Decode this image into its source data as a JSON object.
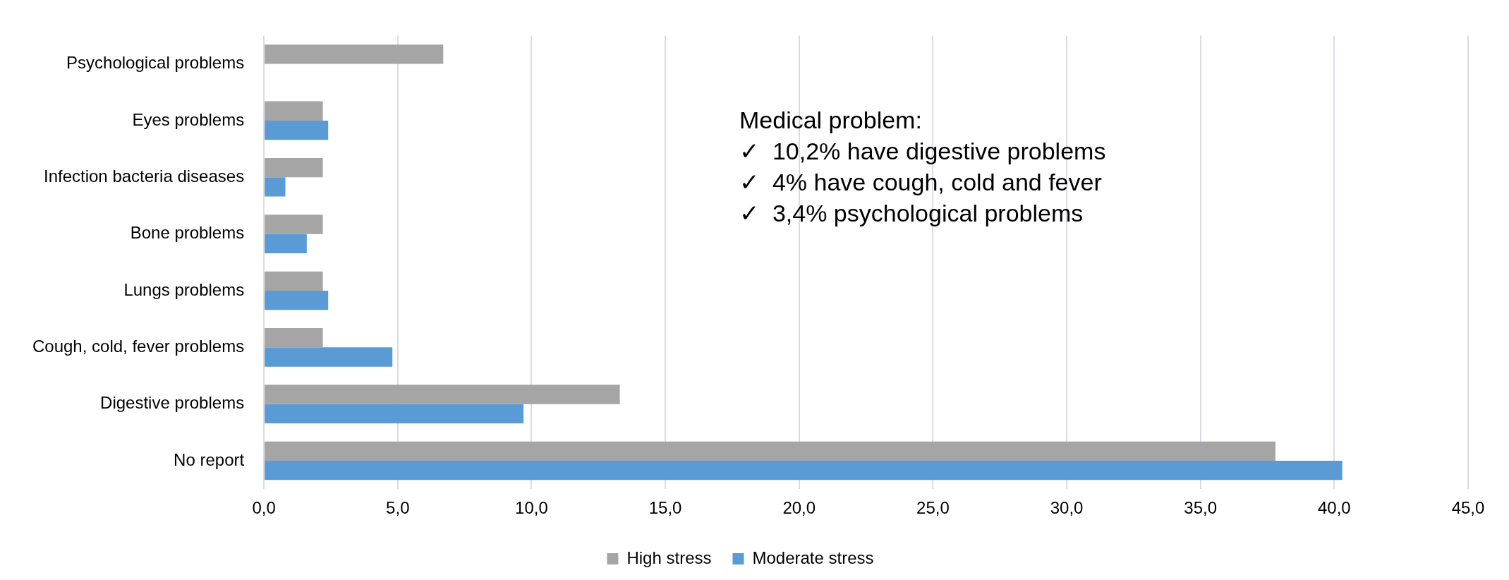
{
  "chart_data": {
    "type": "bar",
    "orientation": "horizontal",
    "categories": [
      "Psychological problems",
      "Eyes problems",
      "Infection bacteria diseases",
      "Bone problems",
      "Lungs problems",
      "Cough, cold, fever problems",
      "Digestive problems",
      "No report"
    ],
    "series": [
      {
        "name": "High stress",
        "color": "#a5a5a5",
        "values": [
          6.7,
          2.2,
          2.2,
          2.2,
          2.2,
          2.2,
          13.3,
          37.8
        ]
      },
      {
        "name": "Moderate stress",
        "color": "#5b9bd5",
        "values": [
          null,
          2.4,
          0.8,
          1.6,
          2.4,
          4.8,
          9.7,
          40.3
        ]
      }
    ],
    "xlim": [
      0,
      45
    ],
    "xticks": [
      {
        "value": 0,
        "label": "0,0"
      },
      {
        "value": 5,
        "label": "5,0"
      },
      {
        "value": 10,
        "label": "10,0"
      },
      {
        "value": 15,
        "label": "15,0"
      },
      {
        "value": 20,
        "label": "20,0"
      },
      {
        "value": 25,
        "label": "25,0"
      },
      {
        "value": 30,
        "label": "30,0"
      },
      {
        "value": 35,
        "label": "35,0"
      },
      {
        "value": 40,
        "label": "40,0"
      },
      {
        "value": 45,
        "label": "45,0"
      }
    ],
    "grid": "x",
    "legend": "bottom",
    "annotations": [
      "Medical problem:",
      "✓  10,2% have digestive problems",
      "✓  4% have cough, cold and fever",
      "✓  3,4% psychological problems"
    ]
  }
}
